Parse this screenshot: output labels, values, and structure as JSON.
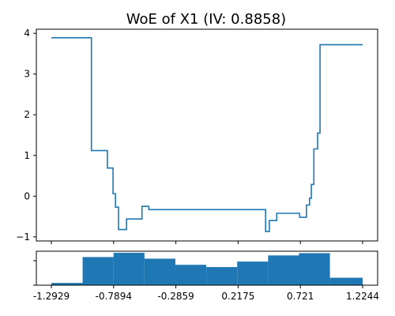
{
  "chart_data": {
    "type": "line",
    "title": "WoE of X1 (IV: 0.8858)",
    "xlabel": "",
    "ylabel": "",
    "xlim": [
      -1.2929,
      1.2244
    ],
    "ylim": [
      -1.1,
      4.1
    ],
    "x_ticks": [
      -1.2929,
      -0.7894,
      -0.2859,
      0.2175,
      0.721,
      1.2244
    ],
    "x_tick_labels": [
      "-1.2929",
      "-0.7894",
      "-0.2859",
      "0.2175",
      "0.721",
      "1.2244"
    ],
    "y_ticks": [
      -1,
      0,
      1,
      2,
      3,
      4
    ],
    "y_tick_labels": [
      "−1",
      "0",
      "1",
      "2",
      "3",
      "4"
    ],
    "grid": false,
    "woe_steps": [
      {
        "x0": -1.2929,
        "x1": -0.969,
        "y": 3.89
      },
      {
        "x0": -0.969,
        "x1": -0.84,
        "y": 1.12
      },
      {
        "x0": -0.84,
        "x1": -0.794,
        "y": 0.69
      },
      {
        "x0": -0.794,
        "x1": -0.775,
        "y": 0.06
      },
      {
        "x0": -0.775,
        "x1": -0.75,
        "y": -0.27
      },
      {
        "x0": -0.75,
        "x1": -0.685,
        "y": -0.82
      },
      {
        "x0": -0.685,
        "x1": -0.56,
        "y": -0.56
      },
      {
        "x0": -0.56,
        "x1": -0.505,
        "y": -0.25
      },
      {
        "x0": -0.505,
        "x1": 0.44,
        "y": -0.33
      },
      {
        "x0": 0.44,
        "x1": 0.47,
        "y": -0.87
      },
      {
        "x0": 0.47,
        "x1": 0.53,
        "y": -0.6
      },
      {
        "x0": 0.53,
        "x1": 0.715,
        "y": -0.42
      },
      {
        "x0": 0.715,
        "x1": 0.77,
        "y": -0.52
      },
      {
        "x0": 0.77,
        "x1": 0.795,
        "y": -0.22
      },
      {
        "x0": 0.795,
        "x1": 0.81,
        "y": -0.05
      },
      {
        "x0": 0.81,
        "x1": 0.83,
        "y": 0.29
      },
      {
        "x0": 0.83,
        "x1": 0.86,
        "y": 1.16
      },
      {
        "x0": 0.86,
        "x1": 0.88,
        "y": 1.55
      },
      {
        "x0": 0.88,
        "x1": 1.2244,
        "y": 3.72
      }
    ],
    "histogram": {
      "ylim": [
        0,
        1.05
      ],
      "bins": [
        {
          "x0": -1.2929,
          "x1": -1.04,
          "h": 0.07
        },
        {
          "x0": -1.04,
          "x1": -0.79,
          "h": 0.87
        },
        {
          "x0": -0.79,
          "x1": -0.54,
          "h": 1.0
        },
        {
          "x0": -0.54,
          "x1": -0.29,
          "h": 0.82
        },
        {
          "x0": -0.29,
          "x1": -0.04,
          "h": 0.63
        },
        {
          "x0": -0.04,
          "x1": 0.21,
          "h": 0.56
        },
        {
          "x0": 0.21,
          "x1": 0.46,
          "h": 0.73
        },
        {
          "x0": 0.46,
          "x1": 0.71,
          "h": 0.92
        },
        {
          "x0": 0.71,
          "x1": 0.96,
          "h": 0.99
        },
        {
          "x0": 0.96,
          "x1": 1.2244,
          "h": 0.23
        }
      ]
    }
  }
}
